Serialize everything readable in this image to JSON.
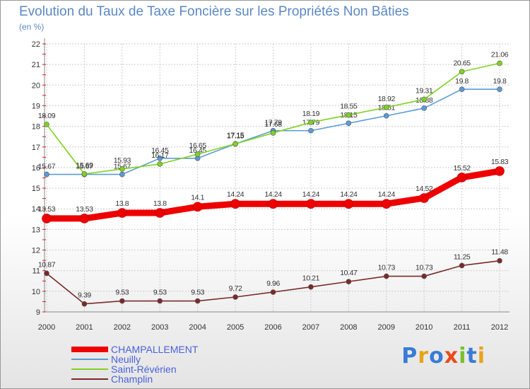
{
  "title": "Evolution du Taux de Taxe Foncière sur les Propriétés Non Bâties",
  "subtitle": "(en %)",
  "brand": "Proxiti",
  "chart_data": {
    "type": "line",
    "title": "Evolution du Taux de Taxe Foncière sur les Propriétés Non Bâties",
    "ylabel": "(en %)",
    "xlabel": "",
    "ylim": [
      9,
      22
    ],
    "yticks": [
      9,
      10,
      11,
      12,
      13,
      14,
      15,
      16,
      17,
      18,
      19,
      20,
      21,
      22
    ],
    "grid": true,
    "legend": "bottom-left",
    "x": [
      2000,
      2001,
      2002,
      2003,
      2004,
      2005,
      2006,
      2007,
      2008,
      2009,
      2010,
      2011,
      2012
    ],
    "series": [
      {
        "name": "CHAMPALLEMENT",
        "color": "#ee0000",
        "values": [
          13.53,
          13.53,
          13.8,
          13.8,
          14.1,
          14.24,
          14.24,
          14.24,
          14.24,
          14.24,
          14.52,
          15.52,
          15.83
        ]
      },
      {
        "name": "Neuilly",
        "color": "#5b9bd5",
        "values": [
          15.67,
          15.67,
          15.67,
          16.45,
          16.45,
          17.15,
          17.79,
          17.79,
          18.15,
          18.51,
          18.88,
          19.8,
          19.8
        ]
      },
      {
        "name": "Saint-Révérien",
        "color": "#7ed321",
        "values": [
          18.09,
          15.69,
          15.93,
          16.17,
          16.65,
          17.15,
          17.68,
          18.19,
          18.55,
          18.92,
          19.31,
          20.65,
          21.06
        ]
      },
      {
        "name": "Champlin",
        "color": "#7a2a2a",
        "values": [
          10.87,
          9.39,
          9.53,
          9.53,
          9.53,
          9.72,
          9.96,
          10.21,
          10.47,
          10.73,
          10.73,
          11.25,
          11.48
        ]
      }
    ]
  }
}
